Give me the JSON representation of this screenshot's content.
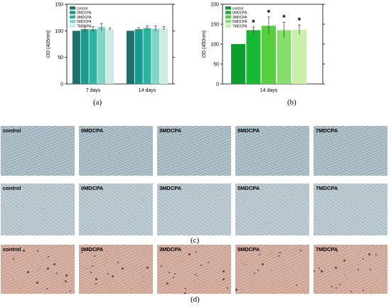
{
  "chart_data": [
    {
      "panel": "(a)",
      "type": "bar",
      "ylabel": "OD (405nm)",
      "ylim": [
        0,
        150
      ],
      "yticks": [
        0,
        50,
        100,
        150
      ],
      "categories": [
        "7 days",
        "14 days"
      ],
      "series": [
        {
          "name": "control",
          "color": "#1f6f6b",
          "values": [
            100,
            100
          ],
          "errors": [
            0,
            0
          ]
        },
        {
          "name": "0MDCPA",
          "color": "#1c9a8f",
          "values": [
            103,
            103
          ],
          "errors": [
            6,
            3
          ]
        },
        {
          "name": "3MDCPA",
          "color": "#2bb3a3",
          "values": [
            103,
            105
          ],
          "errors": [
            5,
            4
          ]
        },
        {
          "name": "5MDCPA",
          "color": "#7fd6c6",
          "values": [
            107,
            104
          ],
          "errors": [
            7,
            5
          ]
        },
        {
          "name": "7MDCPA",
          "color": "#c9ece4",
          "values": [
            103,
            105
          ],
          "errors": [
            2,
            3
          ]
        }
      ],
      "legend": "top-left"
    },
    {
      "panel": "(b)",
      "type": "bar",
      "ylabel": "OD (450nm)",
      "ylim": [
        0,
        200
      ],
      "yticks": [
        0,
        50,
        100,
        150,
        200
      ],
      "categories": [
        "14 days"
      ],
      "series": [
        {
          "name": "control",
          "color": "#0d9f2b",
          "values": [
            100
          ],
          "errors": [
            0
          ],
          "star": false
        },
        {
          "name": "0MDCPA",
          "color": "#17b833",
          "values": [
            135
          ],
          "errors": [
            8
          ],
          "star": true
        },
        {
          "name": "3MDCPA",
          "color": "#55cf3f",
          "values": [
            146
          ],
          "errors": [
            22
          ],
          "star": true
        },
        {
          "name": "5MDCPA",
          "color": "#86df6a",
          "values": [
            135
          ],
          "errors": [
            20
          ],
          "star": true
        },
        {
          "name": "7MDCPA",
          "color": "#c9f0a9",
          "values": [
            136
          ],
          "errors": [
            12
          ],
          "star": true
        }
      ],
      "significance_mark": "*",
      "legend": "top-left"
    }
  ],
  "panel_labels": {
    "a": "(a)",
    "b": "(b)",
    "c": "(c)",
    "d": "(d)"
  },
  "micrographs": {
    "labels": [
      "control",
      "0MDCPA",
      "3MDCPA",
      "5MDCPA",
      "7MDCPA"
    ]
  }
}
